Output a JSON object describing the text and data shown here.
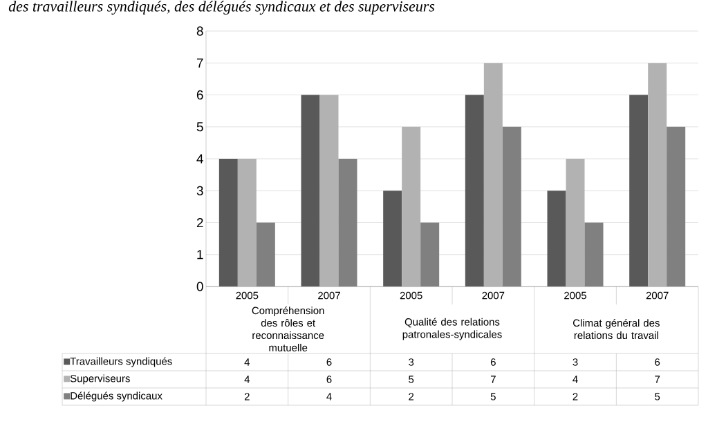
{
  "chart_data": {
    "type": "bar",
    "title": "des travailleurs syndiqués, des délégués syndicaux et des superviseurs",
    "categories": [
      "2005",
      "2007",
      "2005",
      "2007",
      "2005",
      "2007"
    ],
    "annotations": [
      "Compréhension des rôles et reconnaissance mutuelle",
      "Qualité des relations patronales-syndicales",
      "Climat général des relations du travail"
    ],
    "series": [
      {
        "name": "Travailleurs syndiqués",
        "color": "#595959",
        "values": [
          4,
          6,
          3,
          6,
          3,
          6
        ]
      },
      {
        "name": "Superviseurs",
        "color": "#b2b2b2",
        "values": [
          4,
          6,
          5,
          7,
          4,
          7
        ]
      },
      {
        "name": "Délégués syndicaux",
        "color": "#808080",
        "values": [
          2,
          4,
          2,
          5,
          2,
          5
        ]
      }
    ],
    "ylim": [
      0,
      8
    ],
    "yticks": [
      0,
      1,
      2,
      3,
      4,
      5,
      6,
      7,
      8
    ],
    "grid": "y",
    "legend": "bottom",
    "data_labels": true
  }
}
